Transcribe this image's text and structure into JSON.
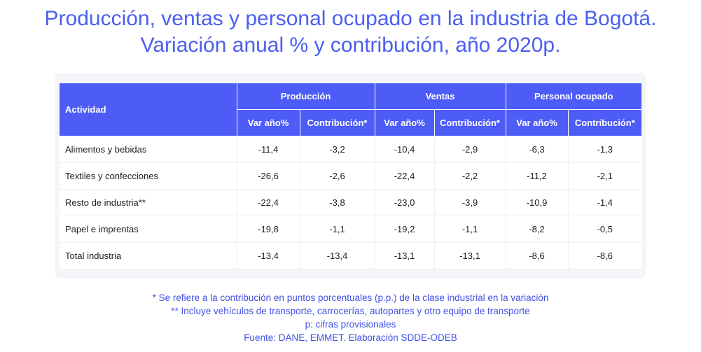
{
  "title": {
    "line1": "Producción, ventas y personal ocupado en la industria de Bogotá.",
    "line2": "Variación anual % y contribución, año 2020p."
  },
  "table": {
    "activity_header": "Actividad",
    "groups": [
      "Producción",
      "Ventas",
      "Personal ocupado"
    ],
    "subheaders": [
      "Var año%",
      "Contribución*",
      "Var año%",
      "Contribución*",
      "Var año%",
      "Contribución*"
    ],
    "rows": [
      {
        "label": "Alimentos y bebidas",
        "values": [
          "-11,4",
          "-3,2",
          "-10,4",
          "-2,9",
          "-6,3",
          "-1,3"
        ]
      },
      {
        "label": "Textiles y confecciones",
        "values": [
          "-26,6",
          "-2,6",
          "-22,4",
          "-2,2",
          "-11,2",
          "-2,1"
        ]
      },
      {
        "label": "Resto de industria**",
        "values": [
          "-22,4",
          "-3,8",
          "-23,0",
          "-3,9",
          "-10,9",
          "-1,4"
        ]
      },
      {
        "label": "Papel e imprentas",
        "values": [
          "-19,8",
          "-1,1",
          "-19,2",
          "-1,1",
          "-8,2",
          "-0,5"
        ]
      },
      {
        "label": "Total industria",
        "values": [
          "-13,4",
          "-13,4",
          "-13,1",
          "-13,1",
          "-8,6",
          "-8,6"
        ]
      }
    ]
  },
  "notes": [
    "* Se refiere a la contribución en puntos porcentuales (p.p.) de la clase industrial en la  variación",
    "** Incluye vehículos de transporte, carrocerías, autopartes y otro equipo de transporte",
    "p: cifras provisionales",
    "Fuente: DANE, EMMET. Elaboración SDDE-ODEB"
  ],
  "colors": {
    "title": "#4a5ff0",
    "header_background": "#4d5cf6",
    "panel_background": "#f4f5f8",
    "notes": "#3f52e6"
  }
}
